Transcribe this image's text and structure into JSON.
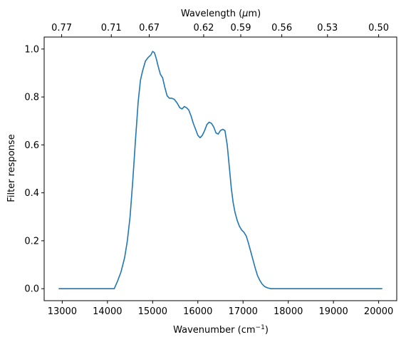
{
  "chart_data": {
    "type": "line",
    "xlabel": "Wavenumber (cm",
    "xlabel_sup": "−1",
    "xlabel_end": ")",
    "ylabel": "Filter response",
    "x2label": "Wavelength (",
    "x2label_mu": "μ",
    "x2label_end": "m)",
    "xlim": [
      12600,
      20400
    ],
    "ylim": [
      -0.05,
      1.05
    ],
    "grid": false,
    "line_color": "#1f77b4",
    "x_ticks": [
      13000,
      14000,
      15000,
      16000,
      17000,
      18000,
      19000,
      20000
    ],
    "x_tick_labels": [
      "13000",
      "14000",
      "15000",
      "16000",
      "17000",
      "18000",
      "19000",
      "20000"
    ],
    "y_ticks": [
      0.0,
      0.2,
      0.4,
      0.6,
      0.8,
      1.0
    ],
    "y_tick_labels": [
      "0.0",
      "0.2",
      "0.4",
      "0.6",
      "0.8",
      "1.0"
    ],
    "top_tick_wavenumbers": [
      12987,
      14085,
      14925,
      16129,
      16949,
      17857,
      18868,
      20000
    ],
    "top_tick_labels": [
      "0.77",
      "0.71",
      "0.67",
      "0.62",
      "0.59",
      "0.56",
      "0.53",
      "0.50"
    ],
    "series": [
      {
        "x": [
          12920,
          13500,
          14000,
          14150,
          14220,
          14300,
          14380,
          14440,
          14500,
          14560,
          14620,
          14680,
          14730,
          14780,
          14840,
          14900,
          14960,
          15000,
          15040,
          15080,
          15120,
          15170,
          15220,
          15270,
          15320,
          15370,
          15420,
          15480,
          15540,
          15600,
          15650,
          15700,
          15750,
          15800,
          15850,
          15900,
          15950,
          16000,
          16050,
          16100,
          16150,
          16200,
          16250,
          16300,
          16350,
          16400,
          16450,
          16500,
          16550,
          16600,
          16650,
          16700,
          16740,
          16780,
          16820,
          16870,
          16920,
          16970,
          17020,
          17070,
          17120,
          17170,
          17220,
          17270,
          17320,
          17370,
          17420,
          17470,
          17520,
          17570,
          17620,
          17680,
          17750,
          17820,
          17900,
          18000,
          18500,
          19000,
          19500,
          20080
        ],
        "y": [
          0.0,
          0.0,
          0.0,
          0.0,
          0.03,
          0.07,
          0.13,
          0.2,
          0.3,
          0.45,
          0.62,
          0.78,
          0.87,
          0.91,
          0.95,
          0.965,
          0.975,
          0.99,
          0.985,
          0.96,
          0.93,
          0.895,
          0.88,
          0.84,
          0.805,
          0.795,
          0.795,
          0.79,
          0.775,
          0.755,
          0.75,
          0.76,
          0.755,
          0.745,
          0.72,
          0.69,
          0.665,
          0.64,
          0.63,
          0.64,
          0.66,
          0.685,
          0.695,
          0.69,
          0.675,
          0.65,
          0.645,
          0.66,
          0.665,
          0.66,
          0.6,
          0.5,
          0.42,
          0.36,
          0.32,
          0.285,
          0.26,
          0.245,
          0.235,
          0.22,
          0.19,
          0.155,
          0.12,
          0.085,
          0.055,
          0.035,
          0.02,
          0.01,
          0.005,
          0.002,
          0.0,
          0.0,
          0.0,
          0.0,
          0.0,
          0.0,
          0.0,
          0.0,
          0.0,
          0.0
        ]
      }
    ]
  }
}
